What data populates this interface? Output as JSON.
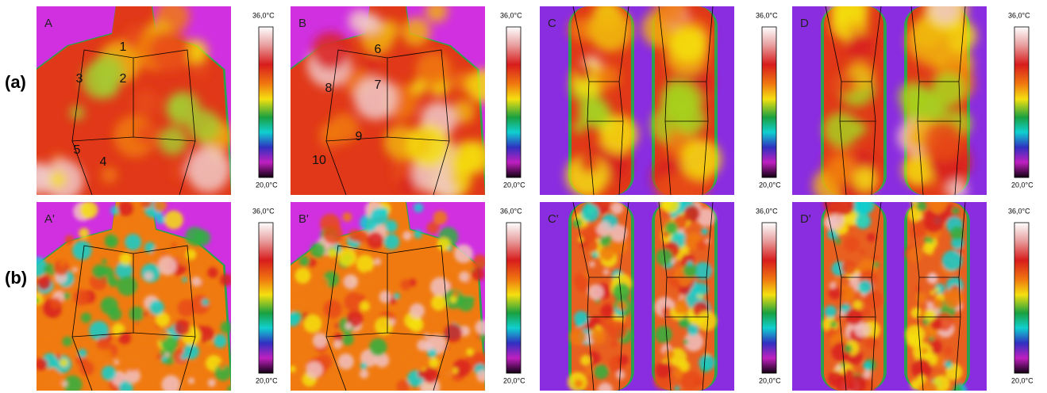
{
  "row_labels": [
    "(a)",
    "(b)"
  ],
  "panels": [
    {
      "label": "A",
      "scale_max": "36,0°C",
      "scale_min": "20,0°C",
      "regions": [
        "1",
        "2",
        "3",
        "4",
        "5"
      ]
    },
    {
      "label": "B",
      "scale_max": "36,0°C",
      "scale_min": "20,0°C",
      "regions": [
        "6",
        "7",
        "8",
        "9",
        "10"
      ]
    },
    {
      "label": "C",
      "scale_max": "36,0°C",
      "scale_min": "20,0°C"
    },
    {
      "label": "D",
      "scale_max": "36,0°C",
      "scale_min": "20,0°C"
    },
    {
      "label": "A'",
      "scale_max": "36,0°C",
      "scale_min": "20,0°C"
    },
    {
      "label": "B'",
      "scale_max": "36,0°C",
      "scale_min": "20,0°C"
    },
    {
      "label": "C'",
      "scale_max": "36,0°C",
      "scale_min": "20,0°C"
    },
    {
      "label": "D'",
      "scale_max": "36,0°C",
      "scale_min": "20,0°C"
    }
  ]
}
